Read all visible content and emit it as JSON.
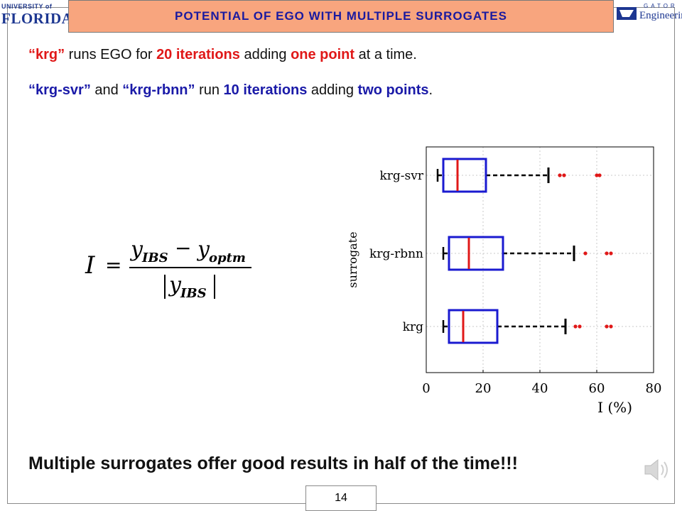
{
  "header": {
    "title": "POTENTIAL OF EGO WITH MULTIPLE SURROGATES",
    "left_logo": {
      "top": "UNIVERSITY of",
      "bottom": "FLORIDA"
    },
    "right_logo": {
      "top": "GATOR",
      "bottom": "Engineering"
    }
  },
  "bullets": {
    "line1": {
      "q1": "“krg”",
      "t1": " runs EGO for ",
      "h1": "20 iterations",
      "t2": " adding ",
      "h2": "one point",
      "t3": " at a time."
    },
    "line2": {
      "q1": "“krg-svr”",
      "t1": " and ",
      "q2": "“krg-rbnn”",
      "t2": " run ",
      "h1": "10 iterations",
      "t3": " adding ",
      "h2": "two points",
      "t4": "."
    }
  },
  "formula": {
    "lhs": "I",
    "eq": "=",
    "num_a": "y",
    "num_a_sub": "IBS",
    "minus": "−",
    "num_b": "y",
    "num_b_sub": "optm",
    "den": "y",
    "den_sub": "IBS"
  },
  "chart_data": {
    "type": "boxplot",
    "orientation": "horizontal",
    "xlabel": "I (%)",
    "ylabel": "surrogate",
    "xlim": [
      0,
      80
    ],
    "xticks": [
      "0",
      "20",
      "40",
      "60",
      "80"
    ],
    "grid": true,
    "categories": [
      "krg-svr",
      "krg-rbnn",
      "krg"
    ],
    "boxes": [
      {
        "name": "krg-svr",
        "whisker_low": 4,
        "q1": 6,
        "median": 11,
        "q3": 21,
        "whisker_high": 43,
        "outliers": [
          47,
          48.5,
          60,
          61
        ]
      },
      {
        "name": "krg-rbnn",
        "whisker_low": 6,
        "q1": 8,
        "median": 15,
        "q3": 27,
        "whisker_high": 52,
        "outliers": [
          56,
          63.5,
          65
        ]
      },
      {
        "name": "krg",
        "whisker_low": 6,
        "q1": 8,
        "median": 13,
        "q3": 25,
        "whisker_high": 49,
        "outliers": [
          52.5,
          54,
          63.5,
          65
        ]
      }
    ],
    "colors": {
      "box": "#1a1ad0",
      "median": "#e01818",
      "whisker": "#000000",
      "outlier": "#e01818"
    }
  },
  "conclusion": "Multiple surrogates offer good results in half of the time!!!",
  "page_number": "14"
}
